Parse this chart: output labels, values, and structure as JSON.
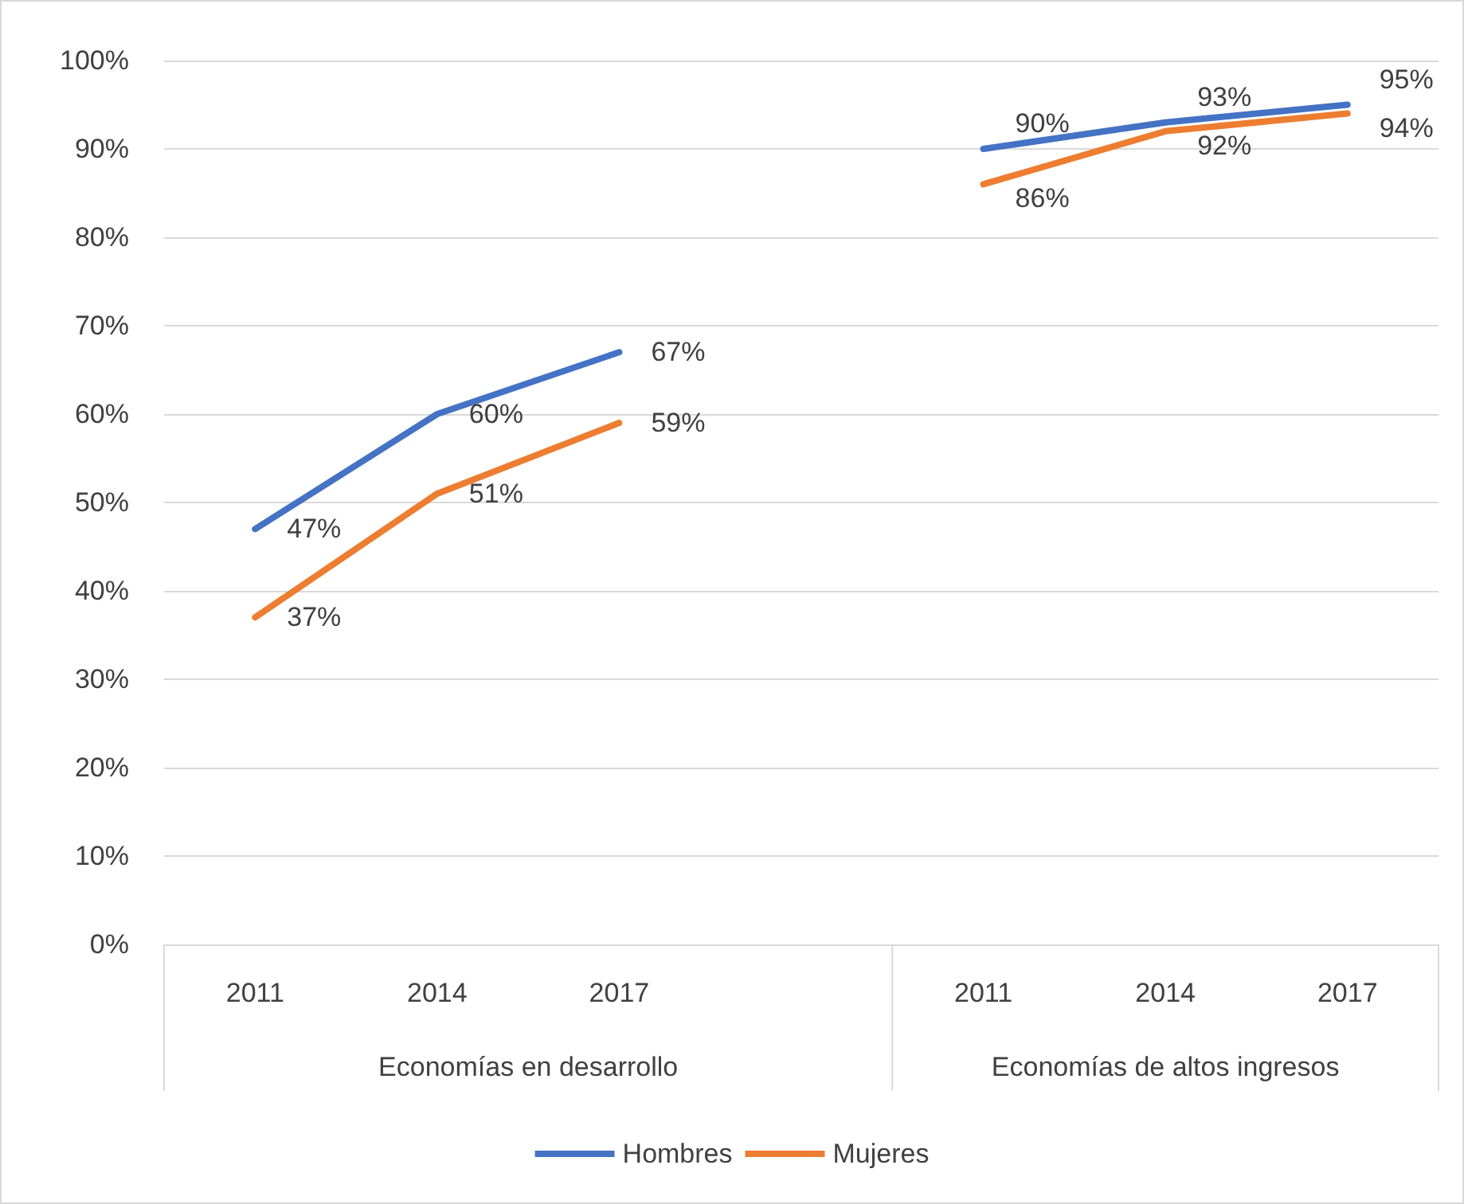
{
  "chart_data": {
    "type": "line",
    "categories": [
      "2011",
      "2014",
      "2017",
      null,
      "2011",
      "2014",
      "2017"
    ],
    "series": [
      {
        "name": "Hombres",
        "color": "#4472c4",
        "values": [
          47,
          60,
          67,
          null,
          90,
          93,
          95
        ],
        "value_labels": [
          "47%",
          "60%",
          "67%",
          null,
          "90%",
          "93%",
          "95%"
        ]
      },
      {
        "name": "Mujeres",
        "color": "#ed7d31",
        "values": [
          37,
          51,
          59,
          null,
          86,
          92,
          94
        ],
        "value_labels": [
          "37%",
          "51%",
          "59%",
          null,
          "86%",
          "92%",
          "94%"
        ]
      }
    ],
    "ylim": [
      0,
      100
    ],
    "yticks": [
      {
        "value": 0,
        "label": "0%"
      },
      {
        "value": 10,
        "label": "10%"
      },
      {
        "value": 20,
        "label": "20%"
      },
      {
        "value": 30,
        "label": "30%"
      },
      {
        "value": 40,
        "label": "40%"
      },
      {
        "value": 50,
        "label": "50%"
      },
      {
        "value": 60,
        "label": "60%"
      },
      {
        "value": 70,
        "label": "70%"
      },
      {
        "value": 80,
        "label": "80%"
      },
      {
        "value": 90,
        "label": "90%"
      },
      {
        "value": 100,
        "label": "100%"
      }
    ],
    "annotations": [
      "Economías en desarrollo",
      "Economías de altos ingresos"
    ],
    "grid": "y",
    "legend": "bottom",
    "marker": "none",
    "line_style": "solid"
  }
}
